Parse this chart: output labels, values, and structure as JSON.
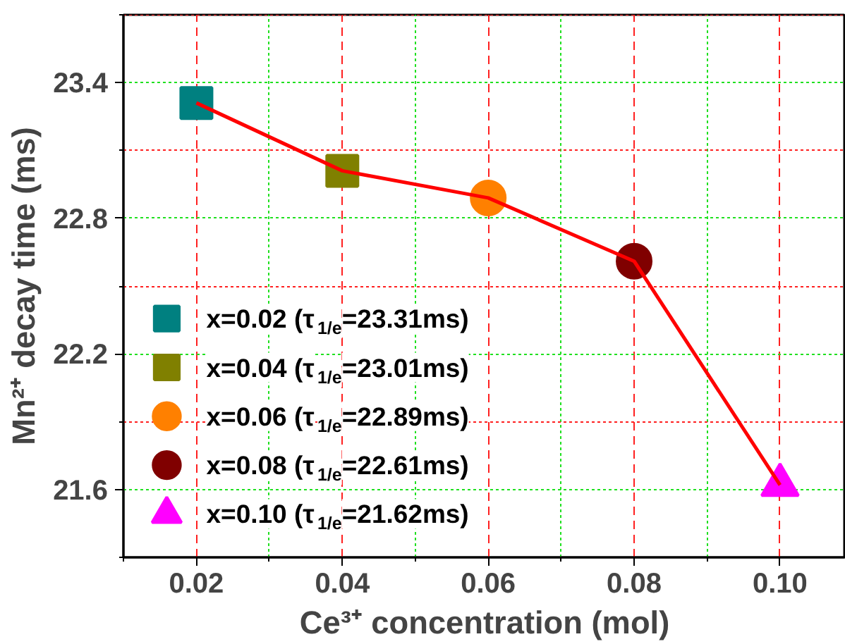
{
  "chart_data": {
    "type": "scatter",
    "xlabel": "Ce³⁺ concentration (mol)",
    "ylabel": "Mn²⁺ decay time (ms)",
    "xlim": [
      0.01,
      0.109
    ],
    "xticks": [
      {
        "value": 0.02,
        "label": "0.02"
      },
      {
        "value": 0.04,
        "label": "0.04"
      },
      {
        "value": 0.06,
        "label": "0.06"
      },
      {
        "value": 0.08,
        "label": "0.08"
      },
      {
        "value": 0.1,
        "label": "0.10"
      }
    ],
    "ylim": [
      21.3,
      23.7
    ],
    "yticks": [
      21.6,
      22.2,
      22.8,
      23.4
    ],
    "grid": true,
    "legend": "bottom left",
    "series": [
      {
        "type": "line",
        "color": "#ff0000",
        "x": [
          0.02,
          0.04,
          0.06,
          0.08,
          0.1
        ],
        "values": [
          23.31,
          23.01,
          22.89,
          22.61,
          21.62
        ],
        "marker": "none",
        "line_style": "solid"
      },
      {
        "name": "x=0.02 (τ$_{1/e}$=23.31ms)",
        "color": "#008080",
        "x": [
          0.02
        ],
        "values": [
          23.31
        ],
        "marker": "square"
      },
      {
        "name": "x=0.04 (τ$_{1/e}$=23.01ms)",
        "color": "#808000",
        "x": [
          0.04
        ],
        "values": [
          23.01
        ],
        "marker": "square"
      },
      {
        "name": "x=0.06 (τ$_{1/e}$=22.89ms)",
        "color": "#ff8000",
        "x": [
          0.06
        ],
        "values": [
          22.89
        ],
        "marker": "circle"
      },
      {
        "name": "x=0.08 (τ$_{1/e}$=22.61ms)",
        "color": "#800000",
        "x": [
          0.08
        ],
        "values": [
          22.61
        ],
        "marker": "circle"
      },
      {
        "name": "x=0.10 (τ$_{1/e}$=21.62ms)",
        "color": "#ff00ff",
        "x": [
          0.1
        ],
        "values": [
          21.62
        ],
        "marker": "triangle"
      }
    ]
  }
}
